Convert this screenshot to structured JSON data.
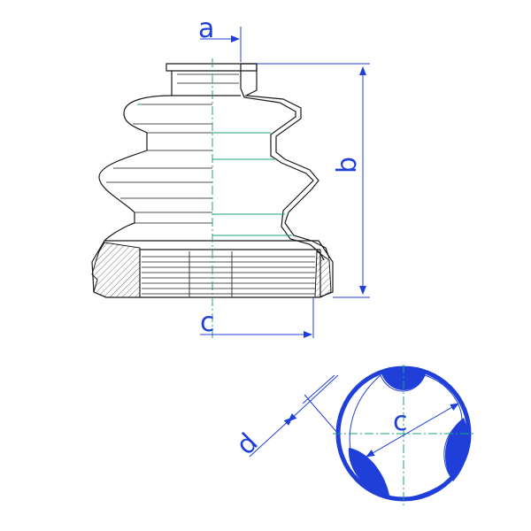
{
  "drawing": {
    "labels": {
      "a": "a",
      "b": "b",
      "c_side": "c",
      "c_section": "c",
      "d": "d"
    },
    "colors": {
      "outline": "#1a1a1a",
      "dimension": "#1f3fd8",
      "centerline": "#1aa37a",
      "background": "#ffffff"
    }
  }
}
